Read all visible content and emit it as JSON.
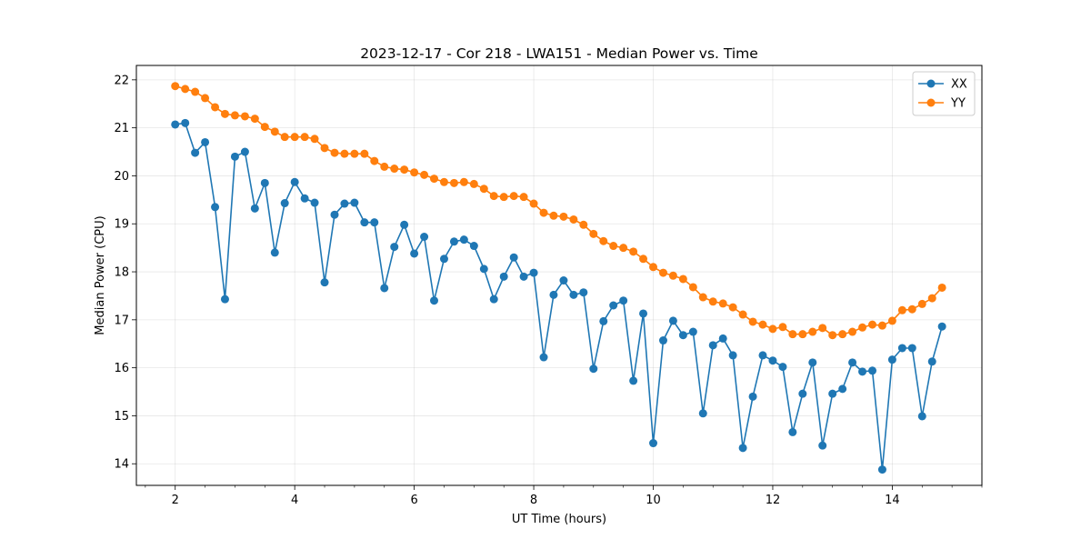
{
  "chart_data": {
    "type": "line",
    "title": "2023-12-17 - Cor 218 - LWA151 - Median Power vs. Time",
    "xlabel": "UT Time (hours)",
    "ylabel": "Median Power (CPU)",
    "xlim": [
      1.35,
      15.5
    ],
    "ylim": [
      13.55,
      22.3
    ],
    "xticks": [
      2,
      4,
      6,
      8,
      10,
      12,
      14
    ],
    "xtick_labels": [
      "2",
      "4",
      "6",
      "8",
      "10",
      "12",
      "14"
    ],
    "yticks": [
      14,
      15,
      16,
      17,
      18,
      19,
      20,
      21,
      22
    ],
    "ytick_labels": [
      "14",
      "15",
      "16",
      "17",
      "18",
      "19",
      "20",
      "21",
      "22"
    ],
    "grid": true,
    "legend_position": "top-right",
    "x": [
      2.0,
      2.167,
      2.333,
      2.5,
      2.667,
      2.833,
      3.0,
      3.167,
      3.333,
      3.5,
      3.667,
      3.833,
      4.0,
      4.167,
      4.333,
      4.5,
      4.667,
      4.833,
      5.0,
      5.167,
      5.333,
      5.5,
      5.667,
      5.833,
      6.0,
      6.167,
      6.333,
      6.5,
      6.667,
      6.833,
      7.0,
      7.167,
      7.333,
      7.5,
      7.667,
      7.833,
      8.0,
      8.167,
      8.333,
      8.5,
      8.667,
      8.833,
      9.0,
      9.167,
      9.333,
      9.5,
      9.667,
      9.833,
      10.0,
      10.167,
      10.333,
      10.5,
      10.667,
      10.833,
      11.0,
      11.167,
      11.333,
      11.5,
      11.667,
      11.833,
      12.0,
      12.167,
      12.333,
      12.5,
      12.667,
      12.833,
      13.0,
      13.167,
      13.333,
      13.5,
      13.667,
      13.833,
      14.0,
      14.167,
      14.333,
      14.5,
      14.667,
      14.833
    ],
    "series": [
      {
        "name": "XX",
        "color": "#1f77b4",
        "values": [
          21.07,
          21.1,
          20.48,
          20.7,
          19.35,
          17.43,
          20.4,
          20.5,
          19.32,
          19.85,
          18.4,
          19.43,
          19.87,
          19.53,
          19.44,
          17.78,
          19.19,
          19.42,
          19.44,
          19.03,
          19.03,
          17.66,
          18.52,
          18.98,
          18.38,
          18.73,
          17.4,
          18.27,
          18.63,
          18.67,
          18.54,
          18.06,
          17.43,
          17.9,
          18.3,
          17.9,
          17.98,
          16.22,
          17.52,
          17.82,
          17.52,
          17.57,
          15.98,
          16.97,
          17.3,
          17.4,
          15.73,
          17.13,
          14.43,
          16.57,
          16.98,
          16.68,
          16.75,
          15.05,
          16.47,
          16.61,
          16.26,
          14.33,
          15.4,
          16.26,
          16.15,
          16.02,
          14.66,
          15.46,
          16.11,
          14.38,
          15.46,
          15.56,
          16.11,
          15.92,
          15.94,
          13.88,
          16.17,
          16.41,
          16.41,
          14.99,
          16.13,
          16.86
        ]
      },
      {
        "name": "YY",
        "color": "#ff7f0e",
        "values": [
          21.87,
          21.81,
          21.75,
          21.62,
          21.43,
          21.29,
          21.26,
          21.24,
          21.19,
          21.02,
          20.92,
          20.81,
          20.81,
          20.81,
          20.77,
          20.58,
          20.48,
          20.46,
          20.46,
          20.46,
          20.31,
          20.19,
          20.15,
          20.13,
          20.07,
          20.02,
          19.94,
          19.87,
          19.85,
          19.87,
          19.83,
          19.73,
          19.58,
          19.56,
          19.58,
          19.56,
          19.42,
          19.23,
          19.17,
          19.15,
          19.09,
          18.98,
          18.79,
          18.64,
          18.54,
          18.5,
          18.42,
          18.27,
          18.1,
          17.98,
          17.92,
          17.85,
          17.68,
          17.47,
          17.38,
          17.34,
          17.26,
          17.11,
          16.96,
          16.9,
          16.81,
          16.85,
          16.7,
          16.7,
          16.75,
          16.83,
          16.68,
          16.7,
          16.75,
          16.84,
          16.9,
          16.88,
          16.98,
          17.2,
          17.22,
          17.33,
          17.45,
          17.67
        ]
      }
    ]
  }
}
